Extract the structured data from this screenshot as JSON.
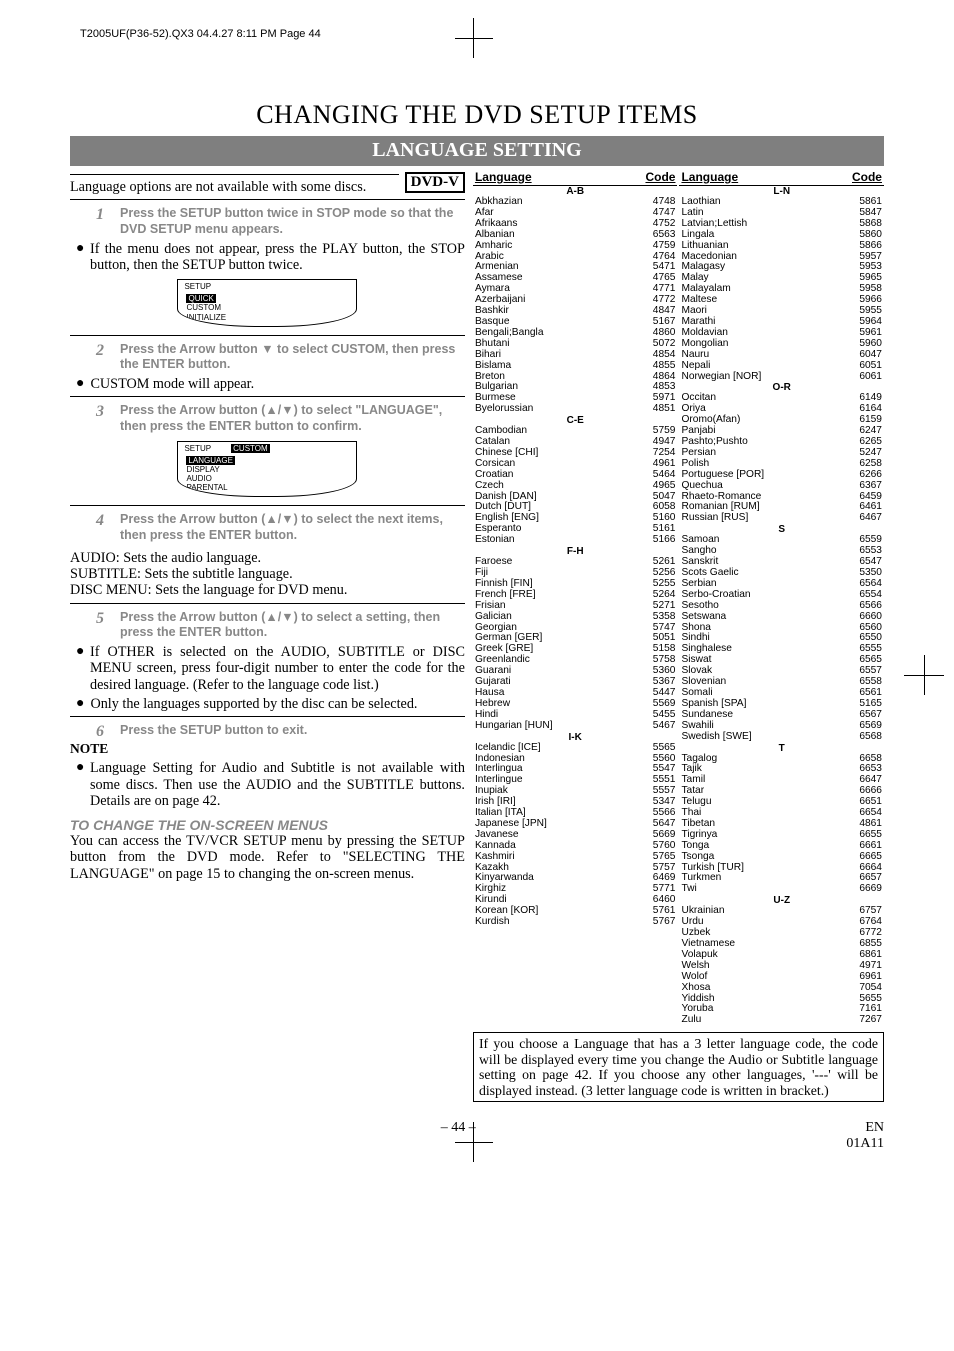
{
  "pageHeader": "T2005UF(P36-52).QX3  04.4.27  8:11 PM  Page 44",
  "mainTitle": "CHANGING THE DVD SETUP ITEMS",
  "subtitleBar": "LANGUAGE SETTING",
  "dvdBox": "DVD-V",
  "intro": "Language options are not available with some discs.",
  "step1": "Press the SETUP button twice in STOP mode so that the DVD SETUP menu appears.",
  "bullet1": "If the menu does not appear, press the PLAY button, the STOP button, then the SETUP button twice.",
  "setupBox1": {
    "header": "SETUP",
    "items": [
      "QUICK",
      "CUSTOM",
      "INITIALIZE"
    ],
    "highlight": 0
  },
  "step2": "Press the Arrow button ▼ to select CUSTOM, then press the ENTER button.",
  "bullet2": "CUSTOM mode will appear.",
  "step3": "Press the Arrow button (▲/▼) to select \"LANGUAGE\", then press the ENTER button to confirm.",
  "setupBox2": {
    "header": "SETUP",
    "headerRight": "CUSTOM",
    "items": [
      "LANGUAGE",
      "DISPLAY",
      "AUDIO",
      "PARENTAL"
    ],
    "highlight": 0
  },
  "step4": "Press the Arrow button (▲/▼) to select the next items, then press the ENTER button.",
  "defs": {
    "audio": "AUDIO: Sets the audio language.",
    "subtitle": "SUBTITLE: Sets the subtitle language.",
    "disc": "DISC MENU: Sets the language for DVD menu."
  },
  "step5": "Press the Arrow button (▲/▼) to select a setting, then press the ENTER button.",
  "bullet5a": "If OTHER is selected on the AUDIO, SUBTITLE or DISC MENU screen, press four-digit number to enter the code for the desired language. (Refer to the language code list.)",
  "bullet5b": "Only the languages supported by the disc can be selected.",
  "step6": "Press the SETUP button to exit.",
  "noteLabel": "NOTE",
  "noteBullet": "Language Setting for Audio and Subtitle is not available with some discs. Then use the AUDIO and the SUBTITLE buttons. Details are on page 42.",
  "subheadItal": "TO CHANGE THE ON-SCREEN MENUS",
  "subheadBody": "You can access the TV/VCR SETUP menu by pressing the SETUP button from the DVD mode. Refer to \"SELECTING THE LANGUAGE\" on page 15 to changing the on-screen menus.",
  "langHeader": {
    "lang": "Language",
    "code": "Code"
  },
  "sections": [
    {
      "col": "L",
      "letter": "A-B",
      "rows": [
        [
          "Abkhazian",
          "4748"
        ],
        [
          "Afar",
          "4747"
        ],
        [
          "Afrikaans",
          "4752"
        ],
        [
          "Albanian",
          "6563"
        ],
        [
          "Amharic",
          "4759"
        ],
        [
          "Arabic",
          "4764"
        ],
        [
          "Armenian",
          "5471"
        ],
        [
          "Assamese",
          "4765"
        ],
        [
          "Aymara",
          "4771"
        ],
        [
          "Azerbaijani",
          "4772"
        ],
        [
          "Bashkir",
          "4847"
        ],
        [
          "Basque",
          "5167"
        ],
        [
          "Bengali;Bangla",
          "4860"
        ],
        [
          "Bhutani",
          "5072"
        ],
        [
          "Bihari",
          "4854"
        ],
        [
          "Bislama",
          "4855"
        ],
        [
          "Breton",
          "4864"
        ],
        [
          "Bulgarian",
          "4853"
        ],
        [
          "Burmese",
          "5971"
        ],
        [
          "Byelorussian",
          "4851"
        ]
      ]
    },
    {
      "col": "L",
      "letter": "C-E",
      "rows": [
        [
          "Cambodian",
          "5759"
        ],
        [
          "Catalan",
          "4947"
        ],
        [
          "Chinese [CHI]",
          "7254"
        ],
        [
          "Corsican",
          "4961"
        ],
        [
          "Croatian",
          "5464"
        ],
        [
          "Czech",
          "4965"
        ],
        [
          "Danish [DAN]",
          "5047"
        ],
        [
          "Dutch [DUT]",
          "6058"
        ],
        [
          "English [ENG]",
          "5160"
        ],
        [
          "Esperanto",
          "5161"
        ],
        [
          "Estonian",
          "5166"
        ]
      ]
    },
    {
      "col": "L",
      "letter": "F-H",
      "rows": [
        [
          "Faroese",
          "5261"
        ],
        [
          "Fiji",
          "5256"
        ],
        [
          "Finnish [FIN]",
          "5255"
        ],
        [
          "French [FRE]",
          "5264"
        ],
        [
          "Frisian",
          "5271"
        ],
        [
          "Galician",
          "5358"
        ],
        [
          "Georgian",
          "5747"
        ],
        [
          "German [GER]",
          "5051"
        ],
        [
          "Greek [GRE]",
          "5158"
        ],
        [
          "Greenlandic",
          "5758"
        ],
        [
          "Guarani",
          "5360"
        ],
        [
          "Gujarati",
          "5367"
        ],
        [
          "Hausa",
          "5447"
        ],
        [
          "Hebrew",
          "5569"
        ],
        [
          "Hindi",
          "5455"
        ],
        [
          "Hungarian [HUN]",
          "5467"
        ]
      ]
    },
    {
      "col": "L",
      "letter": "I-K",
      "rows": [
        [
          "Icelandic [ICE]",
          "5565"
        ],
        [
          "Indonesian",
          "5560"
        ],
        [
          "Interlingua",
          "5547"
        ],
        [
          "Interlingue",
          "5551"
        ],
        [
          "Inupiak",
          "5557"
        ],
        [
          "Irish [IRI]",
          "5347"
        ],
        [
          "Italian [ITA]",
          "5566"
        ],
        [
          "Japanese [JPN]",
          "5647"
        ],
        [
          "Javanese",
          "5669"
        ],
        [
          "Kannada",
          "5760"
        ],
        [
          "Kashmiri",
          "5765"
        ],
        [
          "Kazakh",
          "5757"
        ],
        [
          "Kinyarwanda",
          "6469"
        ],
        [
          "Kirghiz",
          "5771"
        ],
        [
          "Kirundi",
          "6460"
        ],
        [
          "Korean [KOR]",
          "5761"
        ],
        [
          "Kurdish",
          "5767"
        ]
      ]
    },
    {
      "col": "R",
      "letter": "L-N",
      "rows": [
        [
          "Laothian",
          "5861"
        ],
        [
          "Latin",
          "5847"
        ],
        [
          "Latvian;Lettish",
          "5868"
        ],
        [
          "Lingala",
          "5860"
        ],
        [
          "Lithuanian",
          "5866"
        ],
        [
          "Macedonian",
          "5957"
        ],
        [
          "Malagasy",
          "5953"
        ],
        [
          "Malay",
          "5965"
        ],
        [
          "Malayalam",
          "5958"
        ],
        [
          "Maltese",
          "5966"
        ],
        [
          "Maori",
          "5955"
        ],
        [
          "Marathi",
          "5964"
        ],
        [
          "Moldavian",
          "5961"
        ],
        [
          "Mongolian",
          "5960"
        ],
        [
          "Nauru",
          "6047"
        ],
        [
          "Nepali",
          "6051"
        ],
        [
          "Norwegian [NOR]",
          "6061"
        ]
      ]
    },
    {
      "col": "R",
      "letter": "O-R",
      "rows": [
        [
          "Occitan",
          "6149"
        ],
        [
          "Oriya",
          "6164"
        ],
        [
          "Oromo(Afan)",
          "6159"
        ],
        [
          "Panjabi",
          "6247"
        ],
        [
          "Pashto;Pushto",
          "6265"
        ],
        [
          "Persian",
          "5247"
        ],
        [
          "Polish",
          "6258"
        ],
        [
          "Portuguese [POR]",
          "6266"
        ],
        [
          "Quechua",
          "6367"
        ],
        [
          "Rhaeto-Romance",
          "6459"
        ],
        [
          "Romanian [RUM]",
          "6461"
        ],
        [
          "Russian [RUS]",
          "6467"
        ]
      ]
    },
    {
      "col": "R",
      "letter": "S",
      "rows": [
        [
          "Samoan",
          "6559"
        ],
        [
          "Sangho",
          "6553"
        ],
        [
          "Sanskrit",
          "6547"
        ],
        [
          "Scots Gaelic",
          "5350"
        ],
        [
          "Serbian",
          "6564"
        ],
        [
          "Serbo-Croatian",
          "6554"
        ],
        [
          "Sesotho",
          "6566"
        ],
        [
          "Setswana",
          "6660"
        ],
        [
          "Shona",
          "6560"
        ],
        [
          "Sindhi",
          "6550"
        ],
        [
          "Singhalese",
          "6555"
        ],
        [
          "Siswat",
          "6565"
        ],
        [
          "Slovak",
          "6557"
        ],
        [
          "Slovenian",
          "6558"
        ],
        [
          "Somali",
          "6561"
        ],
        [
          "Spanish [SPA]",
          "5165"
        ],
        [
          "Sundanese",
          "6567"
        ],
        [
          "Swahili",
          "6569"
        ],
        [
          "Swedish [SWE]",
          "6568"
        ]
      ]
    },
    {
      "col": "R",
      "letter": "T",
      "rows": [
        [
          "Tagalog",
          "6658"
        ],
        [
          "Tajik",
          "6653"
        ],
        [
          "Tamil",
          "6647"
        ],
        [
          "Tatar",
          "6666"
        ],
        [
          "Telugu",
          "6651"
        ],
        [
          "Thai",
          "6654"
        ],
        [
          "Tibetan",
          "4861"
        ],
        [
          "Tigrinya",
          "6655"
        ],
        [
          "Tonga",
          "6661"
        ],
        [
          "Tsonga",
          "6665"
        ],
        [
          "Turkish [TUR]",
          "6664"
        ],
        [
          "Turkmen",
          "6657"
        ],
        [
          "Twi",
          "6669"
        ]
      ]
    },
    {
      "col": "R",
      "letter": "U-Z",
      "rows": [
        [
          "Ukrainian",
          "6757"
        ],
        [
          "Urdu",
          "6764"
        ],
        [
          "Uzbek",
          "6772"
        ],
        [
          "Vietnamese",
          "6855"
        ],
        [
          "Volapuk",
          "6861"
        ],
        [
          "Welsh",
          "4971"
        ],
        [
          "Wolof",
          "6961"
        ],
        [
          "Xhosa",
          "7054"
        ],
        [
          "Yiddish",
          "5655"
        ],
        [
          "Yoruba",
          "7161"
        ],
        [
          "Zulu",
          "7267"
        ]
      ]
    }
  ],
  "footbox": "If you choose a Language that has a 3 letter language code, the code will be displayed every time you change the Audio or Subtitle language setting on page 42. If you choose any other languages, '---' will be displayed instead. (3 letter language code is written in bracket.)",
  "footer": {
    "left": "– 44 –",
    "rightTop": "EN",
    "rightBottom": "01A11"
  }
}
